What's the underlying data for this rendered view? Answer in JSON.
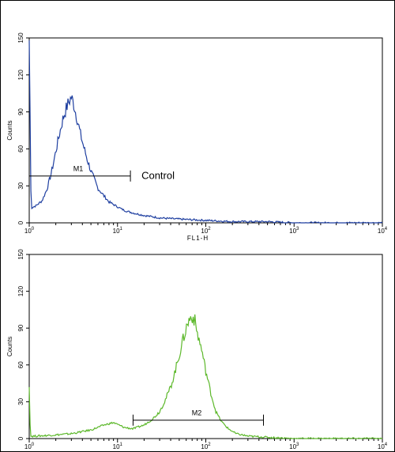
{
  "chart_data": [
    {
      "type": "line",
      "title": "",
      "xlabel": "FL1-H",
      "ylabel": "Counts",
      "xscale": "log",
      "xlim": [
        1,
        10000
      ],
      "ylim": [
        0,
        150
      ],
      "yticks": [
        "0",
        "30",
        "60",
        "90",
        "120",
        "150"
      ],
      "xticks": [
        {
          "base": "10",
          "exp": "0"
        },
        {
          "base": "10",
          "exp": "1"
        },
        {
          "base": "10",
          "exp": "2"
        },
        {
          "base": "10",
          "exp": "3"
        },
        {
          "base": "10",
          "exp": "4"
        }
      ],
      "color": "#1f3fa0",
      "series": [
        {
          "name": "",
          "x": [
            1.0,
            1.05,
            1.2,
            1.4,
            1.6,
            1.8,
            2.0,
            2.2,
            2.4,
            2.6,
            2.8,
            3.0,
            3.2,
            3.5,
            3.8,
            4.2,
            4.6,
            5.0,
            5.5,
            6.0,
            7.0,
            8.0,
            10,
            12,
            15,
            20,
            30,
            50,
            100,
            200,
            500,
            1000,
            10000
          ],
          "y": [
            148,
            12,
            14,
            18,
            28,
            42,
            58,
            72,
            84,
            92,
            98,
            102,
            96,
            84,
            72,
            60,
            50,
            42,
            35,
            28,
            22,
            17,
            13,
            10,
            8,
            6,
            4,
            3,
            2,
            1,
            1,
            0,
            0
          ]
        }
      ],
      "gate": {
        "label": "M1",
        "x_start": 1.0,
        "x_end": 14,
        "y": 38
      },
      "annotation": "Control"
    },
    {
      "type": "line",
      "title": "",
      "xlabel": "",
      "ylabel": "Counts",
      "xscale": "log",
      "xlim": [
        1,
        10000
      ],
      "ylim": [
        0,
        150
      ],
      "yticks": [
        "0",
        "30",
        "60",
        "90",
        "120",
        "150"
      ],
      "xticks": [
        {
          "base": "10",
          "exp": "0"
        },
        {
          "base": "10",
          "exp": "1"
        },
        {
          "base": "10",
          "exp": "2"
        },
        {
          "base": "10",
          "exp": "3"
        },
        {
          "base": "10",
          "exp": "4"
        }
      ],
      "color": "#5cb82a",
      "series": [
        {
          "name": "",
          "x": [
            1.0,
            1.03,
            1.2,
            2,
            3,
            5,
            7,
            9,
            12,
            15,
            20,
            25,
            30,
            35,
            40,
            45,
            50,
            55,
            60,
            65,
            70,
            75,
            80,
            90,
            100,
            115,
            130,
            150,
            180,
            220,
            300,
            500,
            1000,
            10000
          ],
          "y": [
            42,
            2,
            2,
            3,
            4,
            7,
            11,
            13,
            9,
            8,
            11,
            16,
            22,
            32,
            42,
            55,
            68,
            80,
            90,
            97,
            100,
            96,
            86,
            72,
            55,
            36,
            22,
            14,
            8,
            4,
            2,
            1,
            0,
            0
          ]
        }
      ],
      "gate": {
        "label": "M2",
        "x_start": 15,
        "x_end": 450,
        "y": 15
      }
    }
  ]
}
